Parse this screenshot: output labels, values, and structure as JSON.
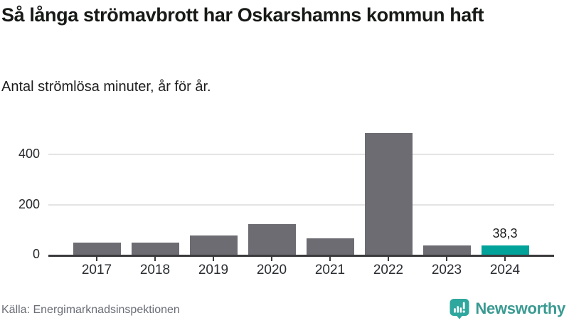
{
  "header": {
    "title": "Så långa strömavbrott har Oskarshamns kommun haft",
    "subtitle": "Antal strömlösa minuter, år för år."
  },
  "footer": {
    "source": "Källa: Energimarknadsinspektionen",
    "brand_name": "Newsworthy",
    "brand_icon": "speech-bubble-bar-chart-exclamation"
  },
  "colors": {
    "bar_default": "#6c6c72",
    "bar_highlight": "#00a29a",
    "axis": "#3b3b3d",
    "grid": "#e4e4e4",
    "tick_label": "#26282b",
    "brand_teal": "#3a9a92",
    "brand_icon_teal": "#2ea79e"
  },
  "chart_data": {
    "type": "bar",
    "title": "Så långa strömavbrott har Oskarshamns kommun haft",
    "subtitle": "Antal strömlösa minuter, år för år.",
    "categories": [
      "2017",
      "2018",
      "2019",
      "2020",
      "2021",
      "2022",
      "2023",
      "2024"
    ],
    "values": [
      49,
      47,
      78,
      122,
      66,
      485,
      36,
      38.3
    ],
    "series_name": "Antal strömlösa minuter",
    "highlight_index": 7,
    "highlight_value_label": "38,3",
    "xlabel": "",
    "ylabel": "",
    "yticks": [
      0,
      200,
      400
    ],
    "ylim": [
      0,
      540
    ],
    "grid": "horizontal",
    "legend": "none"
  }
}
